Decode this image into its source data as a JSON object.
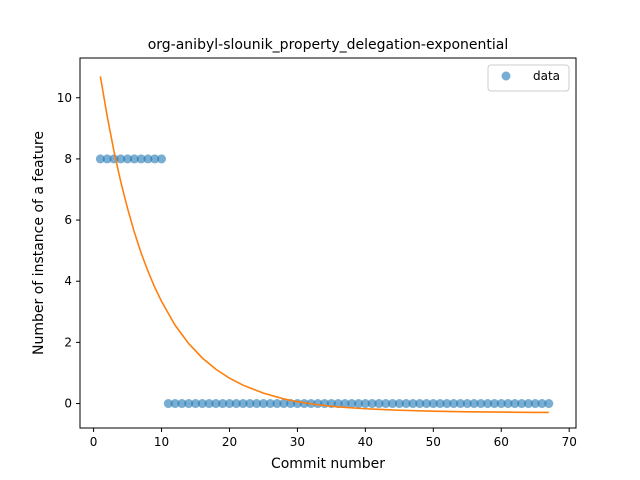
{
  "chart_data": {
    "type": "scatter",
    "title": "org-anibyl-slounik_property_delegation-exponential",
    "xlabel": "Commit number",
    "ylabel": "Number of instance of a feature",
    "xlim": [
      -2,
      71
    ],
    "ylim": [
      -0.8,
      11.3
    ],
    "xticks": [
      "0",
      "10",
      "20",
      "30",
      "40",
      "50",
      "60",
      "70"
    ],
    "yticks": [
      "0",
      "2",
      "4",
      "6",
      "8",
      "10"
    ],
    "grid": false,
    "legend": {
      "position": "top-right",
      "entries": [
        "data"
      ]
    },
    "colors": {
      "data": "#1f77b4",
      "fit": "#ff7f0e"
    },
    "series": [
      {
        "name": "data",
        "kind": "scatter",
        "x": [
          1,
          2,
          3,
          4,
          5,
          6,
          7,
          8,
          9,
          10,
          11,
          12,
          13,
          14,
          15,
          16,
          17,
          18,
          19,
          20,
          21,
          22,
          23,
          24,
          25,
          26,
          27,
          28,
          29,
          30,
          31,
          32,
          33,
          34,
          35,
          36,
          37,
          38,
          39,
          40,
          41,
          42,
          43,
          44,
          45,
          46,
          47,
          48,
          49,
          50,
          51,
          52,
          53,
          54,
          55,
          56,
          57,
          58,
          59,
          60,
          61,
          62,
          63,
          64,
          65,
          66,
          67
        ],
        "y": [
          8,
          8,
          8,
          8,
          8,
          8,
          8,
          8,
          8,
          8,
          0,
          0,
          0,
          0,
          0,
          0,
          0,
          0,
          0,
          0,
          0,
          0,
          0,
          0,
          0,
          0,
          0,
          0,
          0,
          0,
          0,
          0,
          0,
          0,
          0,
          0,
          0,
          0,
          0,
          0,
          0,
          0,
          0,
          0,
          0,
          0,
          0,
          0,
          0,
          0,
          0,
          0,
          0,
          0,
          0,
          0,
          0,
          0,
          0,
          0,
          0,
          0,
          0,
          0,
          0,
          0,
          0
        ]
      },
      {
        "kind": "line",
        "x": [
          1,
          2,
          3,
          4,
          5,
          6,
          7,
          8,
          9,
          10,
          12,
          14,
          16,
          18,
          20,
          22,
          25,
          28,
          30,
          33,
          36,
          40,
          45,
          50,
          55,
          60,
          65,
          67
        ],
        "y": [
          10.7,
          9.4,
          8.25,
          7.25,
          6.38,
          5.6,
          4.92,
          4.33,
          3.8,
          3.34,
          2.56,
          1.96,
          1.49,
          1.12,
          0.83,
          0.6,
          0.34,
          0.15,
          0.06,
          -0.04,
          -0.11,
          -0.17,
          -0.22,
          -0.25,
          -0.27,
          -0.28,
          -0.29,
          -0.29
        ]
      }
    ]
  }
}
